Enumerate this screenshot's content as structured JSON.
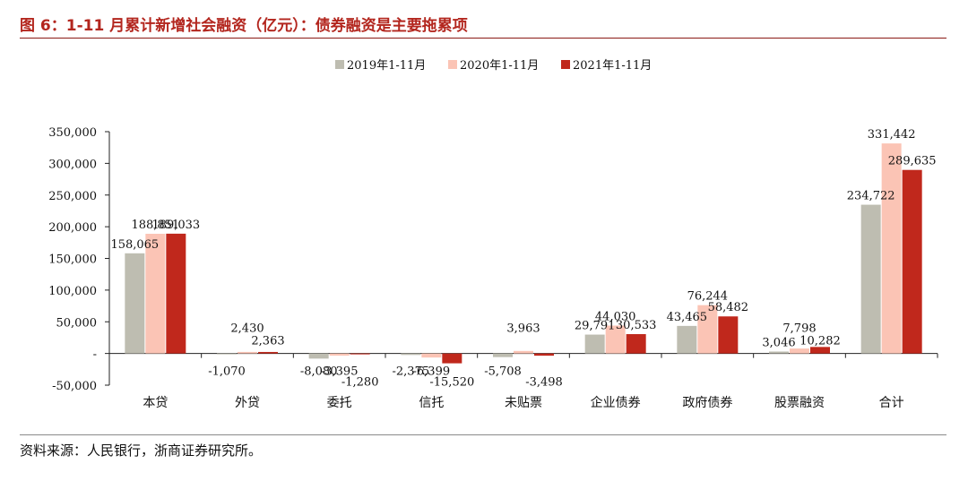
{
  "figure": {
    "title": "图 6：1-11 月累计新增社会融资（亿元）：债券融资是主要拖累项",
    "source": "资料来源：人民银行，浙商证券研究所。"
  },
  "chart_data": {
    "type": "bar",
    "categories": [
      "本贷",
      "外贷",
      "委托",
      "信托",
      "未贴票",
      "企业债券",
      "政府债券",
      "股票融资",
      "合计"
    ],
    "series": [
      {
        "name": "2019年1-11月",
        "color": "#bebdb1",
        "values": [
          158065,
          -1070,
          -8080,
          -2375,
          -5708,
          29791,
          43465,
          3046,
          234722
        ]
      },
      {
        "name": "2020年1-11月",
        "color": "#fbc4b5",
        "values": [
          188851,
          2430,
          -3395,
          -6399,
          3963,
          44030,
          76244,
          7798,
          331442
        ]
      },
      {
        "name": "2021年1-11月",
        "color": "#c0281c",
        "values": [
          189033,
          2363,
          -1280,
          -15520,
          -3498,
          30533,
          58482,
          10282,
          289635
        ]
      }
    ],
    "ylim": [
      -50000,
      350000
    ],
    "yticks": [
      -50000,
      0,
      50000,
      100000,
      150000,
      200000,
      250000,
      300000,
      350000
    ],
    "ytick_labels": [
      "-50,000",
      "-",
      "50,000",
      "100,000",
      "150,000",
      "200,000",
      "250,000",
      "300,000",
      "350,000"
    ],
    "legend_position": "top-center",
    "grid": false
  }
}
